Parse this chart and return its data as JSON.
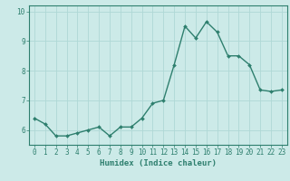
{
  "x": [
    0,
    1,
    2,
    3,
    4,
    5,
    6,
    7,
    8,
    9,
    10,
    11,
    12,
    13,
    14,
    15,
    16,
    17,
    18,
    19,
    20,
    21,
    22,
    23
  ],
  "y": [
    6.4,
    6.2,
    5.8,
    5.8,
    5.9,
    6.0,
    6.1,
    5.8,
    6.1,
    6.1,
    6.4,
    6.9,
    7.0,
    8.2,
    9.5,
    9.1,
    9.65,
    9.3,
    8.5,
    8.5,
    8.2,
    7.35,
    7.3,
    7.35
  ],
  "line_color": "#2e7f6e",
  "marker": "D",
  "markersize": 2.0,
  "linewidth": 1.0,
  "bg_color": "#cceae8",
  "grid_color": "#afd8d5",
  "xlabel": "Humidex (Indice chaleur)",
  "xlabel_fontsize": 6.5,
  "tick_fontsize": 5.5,
  "xlim": [
    -0.5,
    23.5
  ],
  "ylim": [
    5.5,
    10.2
  ],
  "yticks": [
    6,
    7,
    8,
    9,
    10
  ],
  "xticks": [
    0,
    1,
    2,
    3,
    4,
    5,
    6,
    7,
    8,
    9,
    10,
    11,
    12,
    13,
    14,
    15,
    16,
    17,
    18,
    19,
    20,
    21,
    22,
    23
  ]
}
